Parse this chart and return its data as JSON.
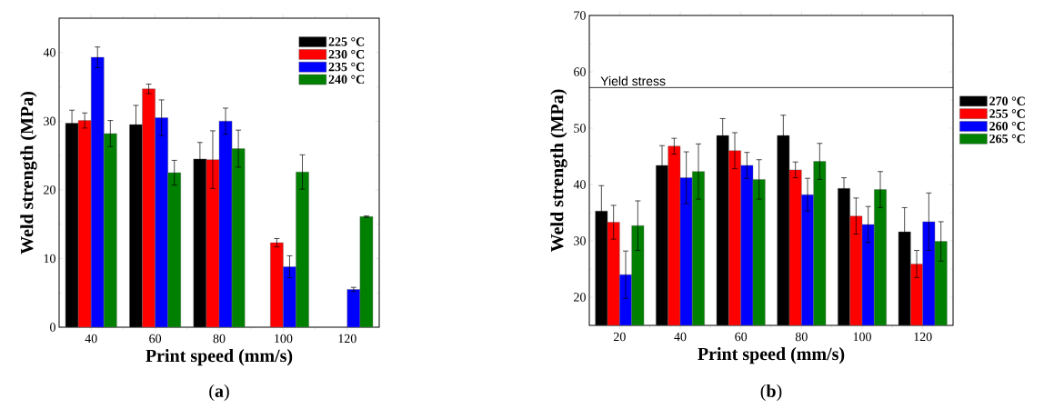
{
  "chart_data": [
    {
      "type": "bar",
      "xlabel": "Print speed (mm/s)",
      "ylabel": "Weld strength (MPa)",
      "categories": [
        "40",
        "60",
        "80",
        "100",
        "120"
      ],
      "ylim": [
        0,
        45
      ],
      "yticks": [
        0,
        10,
        20,
        30,
        40
      ],
      "legend": "top right",
      "annotations": [
        "(**a**)"
      ],
      "series": [
        {
          "name": "225 °C",
          "color": "#000000",
          "values": [
            29.7,
            29.5,
            24.5,
            null,
            null
          ],
          "errors": [
            1.9,
            2.8,
            2.4,
            null,
            null
          ]
        },
        {
          "name": "230 °C",
          "color": "#ff0000",
          "values": [
            30.1,
            34.7,
            24.4,
            12.3,
            null
          ],
          "errors": [
            1.1,
            0.7,
            4.2,
            0.6,
            null
          ]
        },
        {
          "name": "235 °C",
          "color": "#0000ff",
          "values": [
            39.3,
            30.5,
            30.0,
            8.8,
            5.5
          ],
          "errors": [
            1.5,
            2.6,
            1.9,
            1.6,
            0.3
          ]
        },
        {
          "name": "240 °C",
          "color": "#008000",
          "values": [
            28.2,
            22.5,
            26.0,
            22.6,
            16.1
          ],
          "errors": [
            1.9,
            1.8,
            2.7,
            2.5,
            0.1
          ]
        }
      ]
    },
    {
      "type": "bar",
      "xlabel": "Print speed (mm/s)",
      "ylabel": "Weld strength (MPa)",
      "categories": [
        "20",
        "40",
        "60",
        "80",
        "100",
        "120"
      ],
      "ylim": [
        15,
        70
      ],
      "yticks": [
        20,
        30,
        40,
        50,
        60,
        70
      ],
      "legend": "right",
      "annotations": [
        "(**b**)"
      ],
      "ref_lines": [
        {
          "axis": "y",
          "value": 57.2,
          "label": "Yield stress",
          "color": "#000000"
        }
      ],
      "series": [
        {
          "name": "270 °C",
          "color": "#000000",
          "values": [
            35.3,
            43.4,
            48.7,
            48.7,
            39.3,
            31.6
          ],
          "errors": [
            4.5,
            3.5,
            3.0,
            3.6,
            1.9,
            4.3
          ]
        },
        {
          "name": "255 °C",
          "color": "#ff0000",
          "values": [
            33.3,
            46.8,
            46.0,
            42.6,
            34.4,
            25.9
          ],
          "errors": [
            3.0,
            1.4,
            3.2,
            1.4,
            3.2,
            2.4
          ]
        },
        {
          "name": "260 °C",
          "color": "#0000ff",
          "values": [
            24.0,
            41.2,
            43.4,
            38.2,
            32.9,
            33.4
          ],
          "errors": [
            4.2,
            4.6,
            2.3,
            2.9,
            3.2,
            5.1
          ]
        },
        {
          "name": "265 °C",
          "color": "#008000",
          "values": [
            32.7,
            42.3,
            40.9,
            44.1,
            39.1,
            29.9
          ],
          "errors": [
            4.4,
            4.9,
            3.5,
            3.2,
            3.2,
            3.5
          ]
        }
      ]
    }
  ]
}
